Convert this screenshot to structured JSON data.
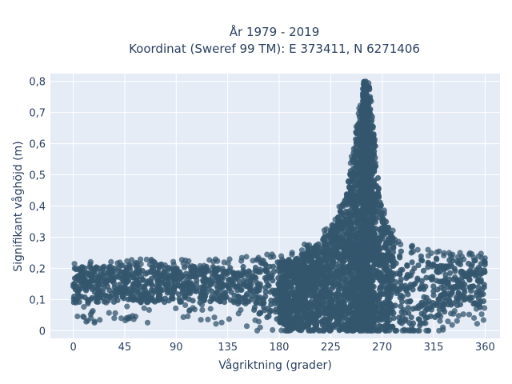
{
  "chart_data": {
    "type": "scatter",
    "title_lines": [
      "År 1979 - 2019",
      "Koordinat (Sweref 99 TM): E 373411, N 6271406"
    ],
    "xlabel": "Vågriktning (grader)",
    "ylabel": "Signifikant våghöjd (m)",
    "xlim": [
      -20,
      373
    ],
    "ylim": [
      -0.025,
      0.825
    ],
    "x_ticks": [
      0,
      45,
      90,
      135,
      180,
      225,
      270,
      315,
      360
    ],
    "x_tick_labels": [
      "0",
      "45",
      "90",
      "135",
      "180",
      "225",
      "270",
      "315",
      "360"
    ],
    "y_ticks": [
      0,
      0.1,
      0.2,
      0.3,
      0.4,
      0.5,
      0.6,
      0.7,
      0.8
    ],
    "y_tick_labels": [
      "0",
      "0,1",
      "0,2",
      "0,3",
      "0,4",
      "0,5",
      "0,6",
      "0,7",
      "0,8"
    ],
    "grid": true,
    "colors": {
      "plot_bg": "#e5ecf6",
      "grid": "#ffffff",
      "marker": "#34566d",
      "text": "#2a3f5f"
    },
    "series": [
      {
        "marker_color": "#34566d",
        "distribution": [
          {
            "x_range": [
              0,
              140
            ],
            "y_core": [
              0.05,
              0.2
            ],
            "y_outer": [
              0.01,
              0.22
            ]
          },
          {
            "x_range": [
              140,
              200
            ],
            "y_core": [
              0.03,
              0.22
            ],
            "y_outer": [
              0.01,
              0.24
            ]
          },
          {
            "x_range": [
              200,
              245
            ],
            "y_core": [
              0.0,
              0.35
            ],
            "y_outer": [
              0.0,
              0.5
            ]
          },
          {
            "x_range": [
              245,
              262
            ],
            "y_core": [
              0.0,
              0.8
            ],
            "y_outer": [
              0.0,
              0.8
            ]
          },
          {
            "x_range": [
              262,
              300
            ],
            "y_core": [
              0.0,
              0.3
            ],
            "y_outer": [
              0.0,
              0.42
            ]
          },
          {
            "x_range": [
              300,
              360
            ],
            "y_core": [
              0.03,
              0.2
            ],
            "y_outer": [
              0.01,
              0.23
            ]
          }
        ],
        "peak": {
          "x": 257,
          "y": 0.8
        }
      }
    ]
  }
}
